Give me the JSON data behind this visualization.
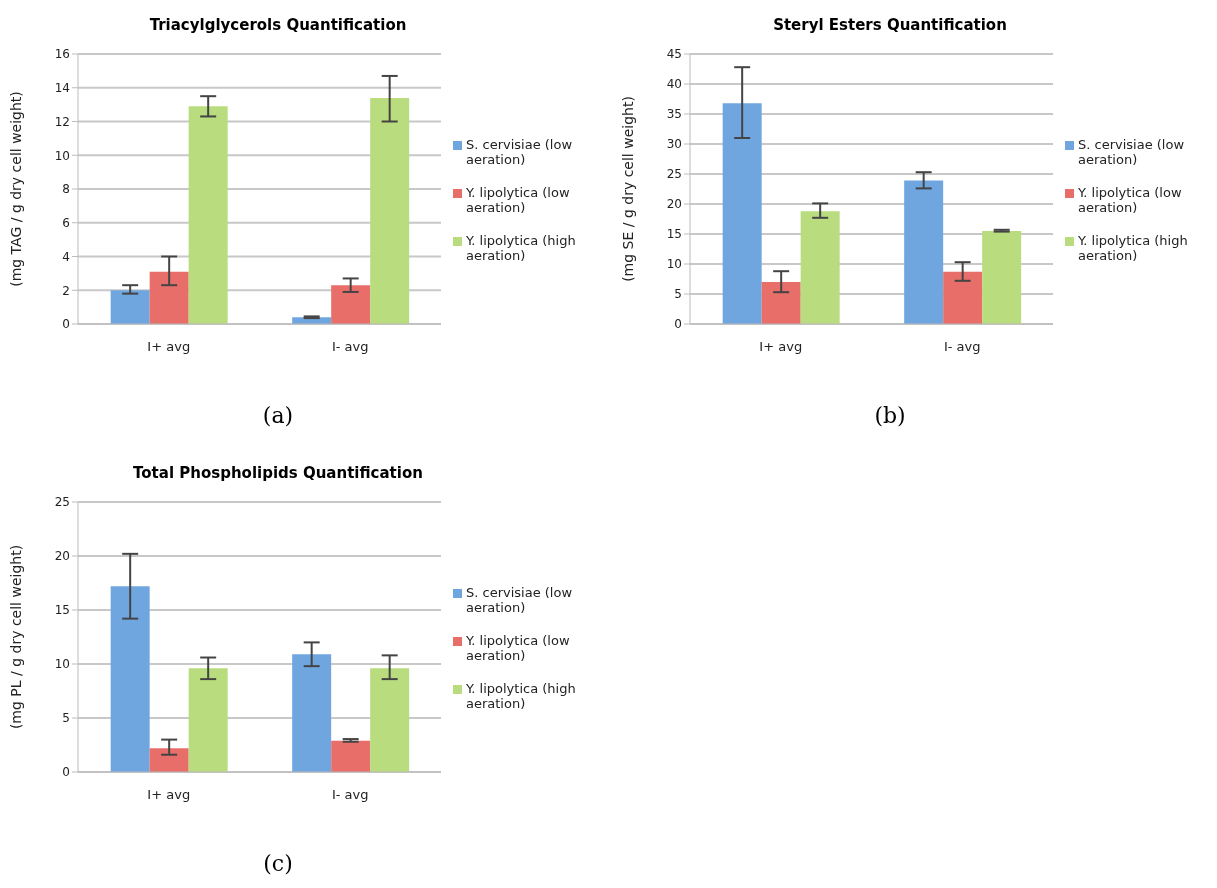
{
  "chart_data": [
    {
      "type": "bar",
      "title": "Triacylglycerols Quantification",
      "ylabel": "(mg TAG / g dry cell weight)",
      "categories": [
        "I+ avg",
        "I- avg"
      ],
      "ylim": [
        0,
        16
      ],
      "yticks": [
        0,
        2,
        4,
        6,
        8,
        10,
        12,
        14,
        16
      ],
      "grid": "y",
      "legend": "right",
      "annotations": [
        "(a)"
      ],
      "series": [
        {
          "name": "S. cervisiae (low aeration)",
          "color": "#6fa6e0",
          "values": [
            2.0,
            0.4
          ],
          "errors": [
            [
              1.8,
              2.3
            ],
            0.05
          ]
        },
        {
          "name": "Y. lipolytica (low aeration)",
          "color": "#e86e6a",
          "values": [
            3.1,
            2.3
          ],
          "errors": [
            [
              2.3,
              4.0
            ],
            [
              1.9,
              2.7
            ]
          ]
        },
        {
          "name": "Y. lipolytica (high aeration)",
          "color": "#b9dc7e",
          "values": [
            12.9,
            13.4
          ],
          "errors": [
            [
              12.3,
              13.5
            ],
            [
              12.0,
              14.7
            ]
          ]
        }
      ]
    },
    {
      "type": "bar",
      "title": "Steryl Esters Quantification",
      "ylabel": "(mg SE / g dry cell weight)",
      "categories": [
        "I+ avg",
        "I- avg"
      ],
      "ylim": [
        0,
        45
      ],
      "yticks": [
        0,
        5,
        10,
        15,
        20,
        25,
        30,
        35,
        40,
        45
      ],
      "grid": "y",
      "legend": "right",
      "annotations": [
        "(b)"
      ],
      "series": [
        {
          "name": "S. cervisiae (low aeration)",
          "color": "#6fa6e0",
          "values": [
            36.8,
            23.9
          ],
          "errors": [
            [
              31,
              42.8
            ],
            [
              22.6,
              25.3
            ]
          ]
        },
        {
          "name": "Y. lipolytica (low aeration)",
          "color": "#e86e6a",
          "values": [
            7,
            8.7
          ],
          "errors": [
            [
              5.3,
              8.8
            ],
            [
              7.2,
              10.3
            ]
          ]
        },
        {
          "name": "Y. lipolytica (high aeration)",
          "color": "#b9dc7e",
          "values": [
            18.8,
            15.5
          ],
          "errors": [
            [
              17.7,
              20.1
            ],
            [
              15.4,
              15.7
            ]
          ]
        }
      ]
    },
    {
      "type": "bar",
      "title": "Total Phospholipids Quantification",
      "ylabel": "(mg PL / g dry cell weight)",
      "categories": [
        "I+ avg",
        "I- avg"
      ],
      "ylim": [
        0,
        25
      ],
      "yticks": [
        0,
        5,
        10,
        15,
        20,
        25
      ],
      "grid": "y",
      "legend": "right",
      "annotations": [
        "(c)"
      ],
      "series": [
        {
          "name": "S. cervisiae (low aeration)",
          "color": "#6fa6e0",
          "values": [
            17.2,
            10.9
          ],
          "errors": [
            [
              14.2,
              20.2
            ],
            [
              9.8,
              12.0
            ]
          ]
        },
        {
          "name": "Y. lipolytica (low aeration)",
          "color": "#e86e6a",
          "values": [
            2.2,
            2.9
          ],
          "errors": [
            [
              1.6,
              3.0
            ],
            [
              2.8,
              3.05
            ]
          ]
        },
        {
          "name": "Y. lipolytica (high aeration)",
          "color": "#b9dc7e",
          "values": [
            9.6,
            9.6
          ],
          "errors": [
            [
              8.6,
              10.6
            ],
            [
              8.6,
              10.8
            ]
          ]
        }
      ]
    }
  ]
}
